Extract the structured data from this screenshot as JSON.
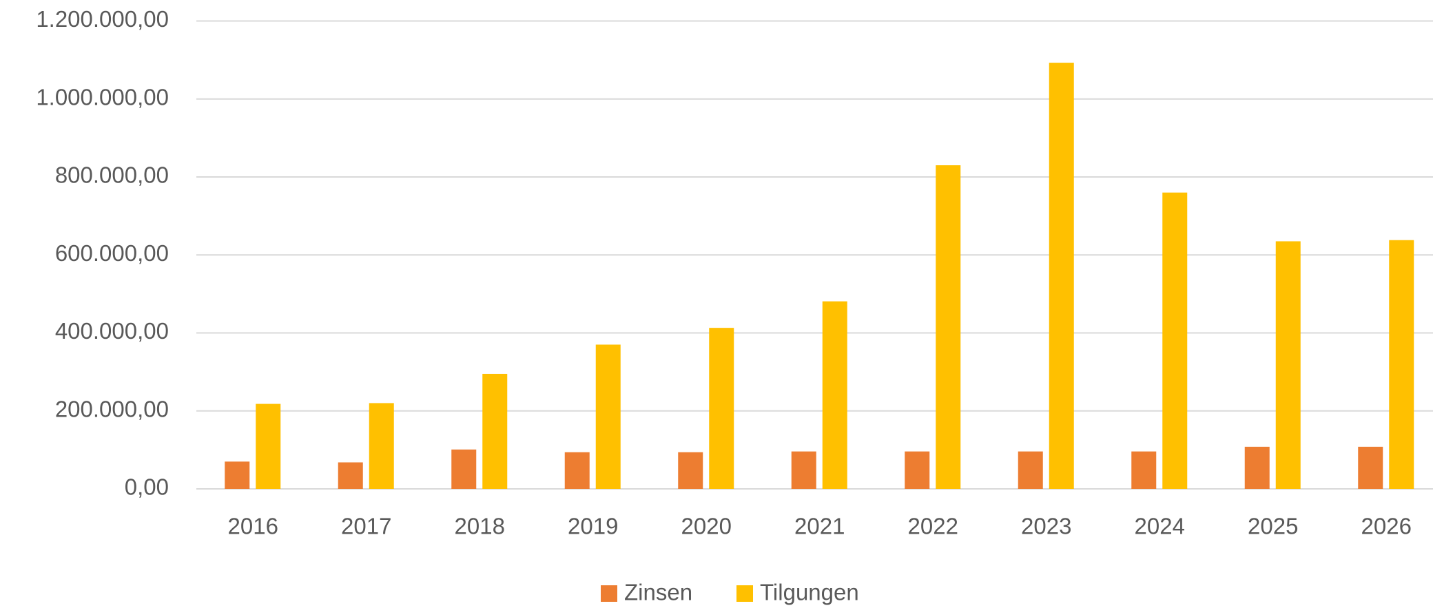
{
  "chart_data": {
    "type": "bar",
    "categories": [
      "2016",
      "2017",
      "2018",
      "2019",
      "2020",
      "2021",
      "2022",
      "2023",
      "2024",
      "2025",
      "2026"
    ],
    "series": [
      {
        "name": "Zinsen",
        "color": "#ed7d31",
        "values": [
          70000,
          68000,
          101000,
          94000,
          94000,
          96000,
          96000,
          96000,
          96000,
          108000,
          108000
        ]
      },
      {
        "name": "Tilgungen",
        "color": "#ffc000",
        "values": [
          218000,
          220000,
          295000,
          370000,
          413000,
          481000,
          830000,
          1093000,
          760000,
          635000,
          638000
        ]
      }
    ],
    "ylim": [
      0,
      1200000
    ],
    "yticks": [
      {
        "value": 0,
        "label": "0,00"
      },
      {
        "value": 200000,
        "label": "200.000,00"
      },
      {
        "value": 400000,
        "label": "400.000,00"
      },
      {
        "value": 600000,
        "label": "600.000,00"
      },
      {
        "value": 800000,
        "label": "800.000,00"
      },
      {
        "value": 1000000,
        "label": "1.000.000,00"
      },
      {
        "value": 1200000,
        "label": "1.200.000,00"
      }
    ],
    "grid": true,
    "legend": "bottom"
  }
}
